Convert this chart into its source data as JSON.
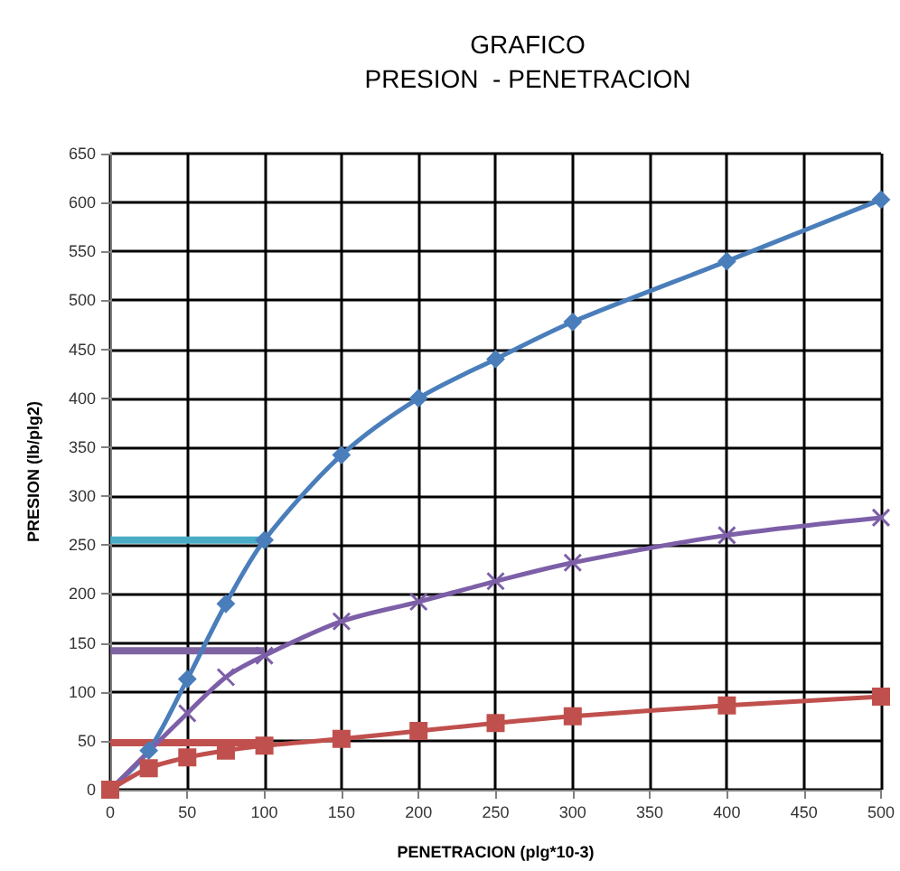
{
  "chart_data": {
    "type": "line",
    "title": "GRAFICO\nPRESION  - PENETRACION",
    "xlabel": "PENETRACION (plg*10-3)",
    "ylabel": "PRESION (lb/plg2)",
    "xlim": [
      0,
      500
    ],
    "xticks": [
      0,
      50,
      100,
      150,
      200,
      250,
      300,
      350,
      400,
      450,
      500
    ],
    "ylim": [
      0,
      650
    ],
    "yticks": [
      0,
      50,
      100,
      150,
      200,
      250,
      300,
      350,
      400,
      450,
      500,
      550,
      600,
      650
    ],
    "grid": true,
    "series": [
      {
        "color": "#4bacc6",
        "x": [
          0,
          100
        ],
        "values": [
          255,
          255
        ],
        "marker": "none"
      },
      {
        "color": "#8064a2",
        "x": [
          0,
          100
        ],
        "values": [
          142,
          142
        ],
        "marker": "none"
      },
      {
        "color": "#c0504d",
        "x": [
          0,
          100
        ],
        "values": [
          48,
          48
        ],
        "marker": "none"
      },
      {
        "color": "#4a7ebb",
        "x": [
          0,
          25,
          50,
          75,
          100,
          150,
          200,
          250,
          300,
          400,
          500
        ],
        "values": [
          0,
          40,
          113,
          190,
          255,
          342,
          400,
          440,
          478,
          540,
          603
        ],
        "marker": "diamond"
      },
      {
        "color": "#7d5fa8",
        "x": [
          0,
          50,
          75,
          100,
          150,
          200,
          250,
          300,
          400,
          500
        ],
        "values": [
          0,
          78,
          115,
          137,
          172,
          192,
          213,
          232,
          260,
          278
        ],
        "marker": "cross"
      },
      {
        "color": "#c0504d",
        "x": [
          0,
          25,
          50,
          75,
          100,
          150,
          200,
          250,
          300,
          400,
          500
        ],
        "values": [
          0,
          22,
          33,
          40,
          45,
          52,
          60,
          68,
          75,
          86,
          95
        ],
        "marker": "square"
      }
    ]
  }
}
